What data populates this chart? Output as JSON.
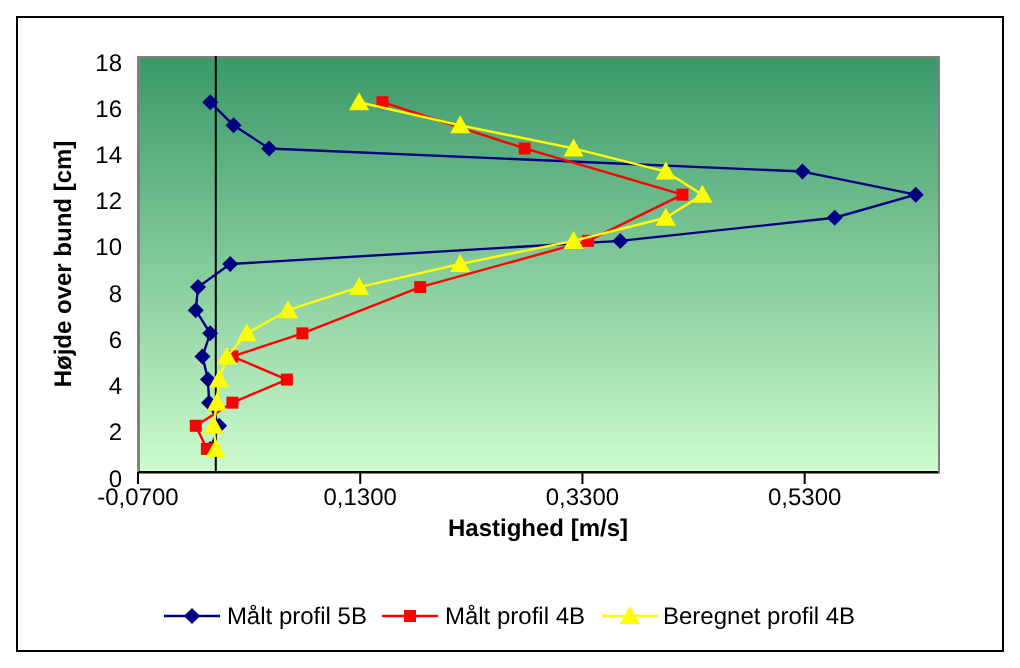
{
  "chart_data": {
    "type": "line",
    "xlabel": "Hastighed [m/s]",
    "ylabel": "Højde over bund [cm]",
    "xlim": [
      -0.07,
      0.65
    ],
    "xticks": [
      {
        "value": -0.07,
        "label": "-0,0700"
      },
      {
        "value": 0.13,
        "label": "0,1300"
      },
      {
        "value": 0.33,
        "label": "0,3300"
      },
      {
        "value": 0.53,
        "label": "0,5300"
      }
    ],
    "ylim": [
      0,
      18
    ],
    "yticks": [
      0,
      2,
      4,
      6,
      8,
      10,
      12,
      14,
      16,
      18
    ],
    "grid": false,
    "legend": "bottom",
    "ref_lines": [
      {
        "axis": "x",
        "value": 0,
        "color": "#000000"
      }
    ],
    "series": [
      {
        "name": "Målt profil 5B",
        "color": "#000080",
        "marker": "diamond",
        "x": [
          -0.005,
          0.016,
          0.048,
          0.528,
          0.63,
          0.557,
          0.364,
          0.013,
          -0.016,
          -0.018,
          -0.005,
          -0.012,
          -0.007,
          -0.006,
          0.003,
          -0.005
        ],
        "values": [
          16,
          15,
          14,
          13,
          12,
          11,
          10,
          9,
          8,
          7,
          6,
          5,
          4,
          3,
          2,
          1
        ]
      },
      {
        "name": "Målt profil 4B",
        "color": "#ff0000",
        "marker": "square",
        "x": [
          0.15,
          0.278,
          0.42,
          0.335,
          0.184,
          0.078,
          0.015,
          0.064,
          0.015,
          -0.018,
          -0.008
        ],
        "values": [
          16,
          14,
          12,
          10,
          8,
          6,
          5,
          4,
          3,
          2,
          1
        ]
      },
      {
        "name": "Beregnet profil 4B",
        "color": "#ffff00",
        "marker": "triangle",
        "x": [
          0.129,
          0.22,
          0.322,
          0.405,
          0.438,
          0.405,
          0.322,
          0.22,
          0.129,
          0.065,
          0.028,
          0.01,
          0.003,
          0.001,
          -0.002,
          0.0
        ],
        "values": [
          16,
          15,
          14,
          13,
          12,
          11,
          10,
          9,
          8,
          7,
          6,
          5,
          4,
          3,
          2,
          1
        ]
      }
    ]
  }
}
